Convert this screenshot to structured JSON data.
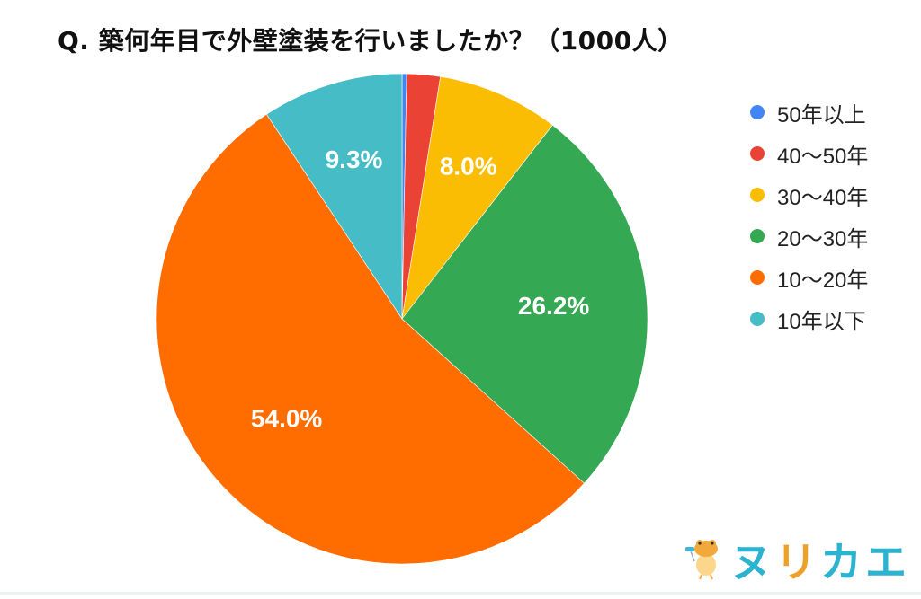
{
  "title": "Q. 築何年目で外壁塗装を行いましたか？（1000人）",
  "chart_data": {
    "type": "pie",
    "title": "Q. 築何年目で外壁塗装を行いましたか？（1000人）",
    "sample_size": 1000,
    "categories": [
      "50年以上",
      "40〜50年",
      "30〜40年",
      "20〜30年",
      "10〜20年",
      "10年以下"
    ],
    "values": [
      0.3,
      2.2,
      8.0,
      26.2,
      54.0,
      9.3
    ],
    "value_labels": [
      "",
      "",
      "8.0%",
      "26.2%",
      "54.0%",
      "9.3%"
    ],
    "colors": [
      "#4285f4",
      "#ea4335",
      "#fbbc04",
      "#34a853",
      "#ff6d01",
      "#46bdc6"
    ],
    "start_angle_deg": 0,
    "direction": "clockwise",
    "legend_position": "right",
    "unit": "%"
  },
  "legend": [
    {
      "label": "50年以上",
      "color": "#4285f4"
    },
    {
      "label": "40〜50年",
      "color": "#ea4335"
    },
    {
      "label": "30〜40年",
      "color": "#fbbc04"
    },
    {
      "label": "20〜30年",
      "color": "#34a853"
    },
    {
      "label": "10〜20年",
      "color": "#ff6d01"
    },
    {
      "label": "10年以下",
      "color": "#46bdc6"
    }
  ],
  "logo": {
    "text": "ヌリカエ",
    "icon": "frog-mascot-icon",
    "colors": {
      "cyan": "#2bb3cf",
      "orange": "#eea12a"
    }
  }
}
